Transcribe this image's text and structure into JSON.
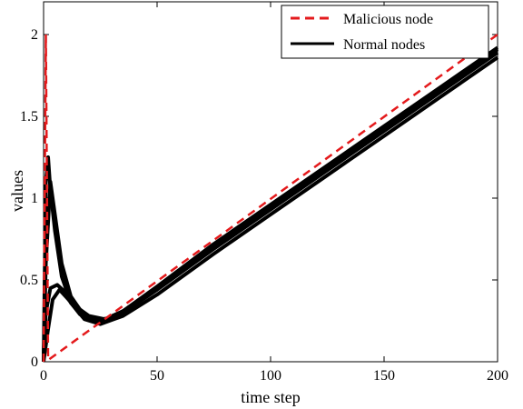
{
  "chart_data": {
    "type": "line",
    "xlabel": "time step",
    "ylabel": "values",
    "xlim": [
      0,
      200
    ],
    "ylim": [
      0,
      2.2
    ],
    "xticks": [
      0,
      50,
      100,
      150,
      200
    ],
    "yticks": [
      0,
      0.5,
      1,
      1.5,
      2
    ],
    "xtick_labels": [
      "0",
      "50",
      "100",
      "150",
      "200"
    ],
    "ytick_labels": [
      "0",
      "0.5",
      "1",
      "1.5",
      "2"
    ],
    "grid": false,
    "legend_position": "top-right",
    "series": [
      {
        "name": "Malicious node",
        "color": "#e41a1c",
        "dash": "dashed",
        "points": [
          [
            0,
            0
          ],
          [
            1,
            2.0
          ],
          [
            2,
            0.01
          ],
          [
            200,
            2.0
          ]
        ]
      },
      {
        "name": "Normal nodes",
        "color": "#000000",
        "dash": "solid",
        "lines": [
          [
            [
              0,
              0
            ],
            [
              1,
              1.1
            ],
            [
              2,
              1.25
            ],
            [
              3,
              1.05
            ],
            [
              5,
              0.8
            ],
            [
              8,
              0.52
            ],
            [
              12,
              0.36
            ],
            [
              18,
              0.26
            ],
            [
              25,
              0.23
            ],
            [
              35,
              0.28
            ],
            [
              50,
              0.41
            ],
            [
              75,
              0.66
            ],
            [
              100,
              0.9
            ],
            [
              125,
              1.14
            ],
            [
              150,
              1.38
            ],
            [
              175,
              1.62
            ],
            [
              200,
              1.86
            ]
          ],
          [
            [
              0,
              0
            ],
            [
              1,
              0.6
            ],
            [
              3,
              1.1
            ],
            [
              5,
              0.9
            ],
            [
              8,
              0.6
            ],
            [
              12,
              0.4
            ],
            [
              18,
              0.28
            ],
            [
              25,
              0.25
            ],
            [
              35,
              0.3
            ],
            [
              50,
              0.44
            ],
            [
              75,
              0.69
            ],
            [
              100,
              0.93
            ],
            [
              125,
              1.17
            ],
            [
              150,
              1.41
            ],
            [
              175,
              1.65
            ],
            [
              200,
              1.89
            ]
          ],
          [
            [
              0,
              0.05
            ],
            [
              1,
              0.3
            ],
            [
              3,
              0.45
            ],
            [
              6,
              0.47
            ],
            [
              10,
              0.42
            ],
            [
              15,
              0.33
            ],
            [
              20,
              0.28
            ],
            [
              27,
              0.26
            ],
            [
              35,
              0.31
            ],
            [
              50,
              0.46
            ],
            [
              75,
              0.72
            ],
            [
              100,
              0.96
            ],
            [
              125,
              1.2
            ],
            [
              150,
              1.44
            ],
            [
              175,
              1.68
            ],
            [
              200,
              1.92
            ]
          ],
          [
            [
              0,
              0
            ],
            [
              2,
              0.2
            ],
            [
              4,
              0.38
            ],
            [
              7,
              0.44
            ],
            [
              11,
              0.38
            ],
            [
              16,
              0.29
            ],
            [
              22,
              0.25
            ],
            [
              30,
              0.27
            ],
            [
              40,
              0.35
            ],
            [
              50,
              0.45
            ],
            [
              75,
              0.71
            ],
            [
              100,
              0.95
            ],
            [
              125,
              1.19
            ],
            [
              150,
              1.43
            ],
            [
              175,
              1.67
            ],
            [
              200,
              1.91
            ]
          ]
        ]
      }
    ]
  }
}
